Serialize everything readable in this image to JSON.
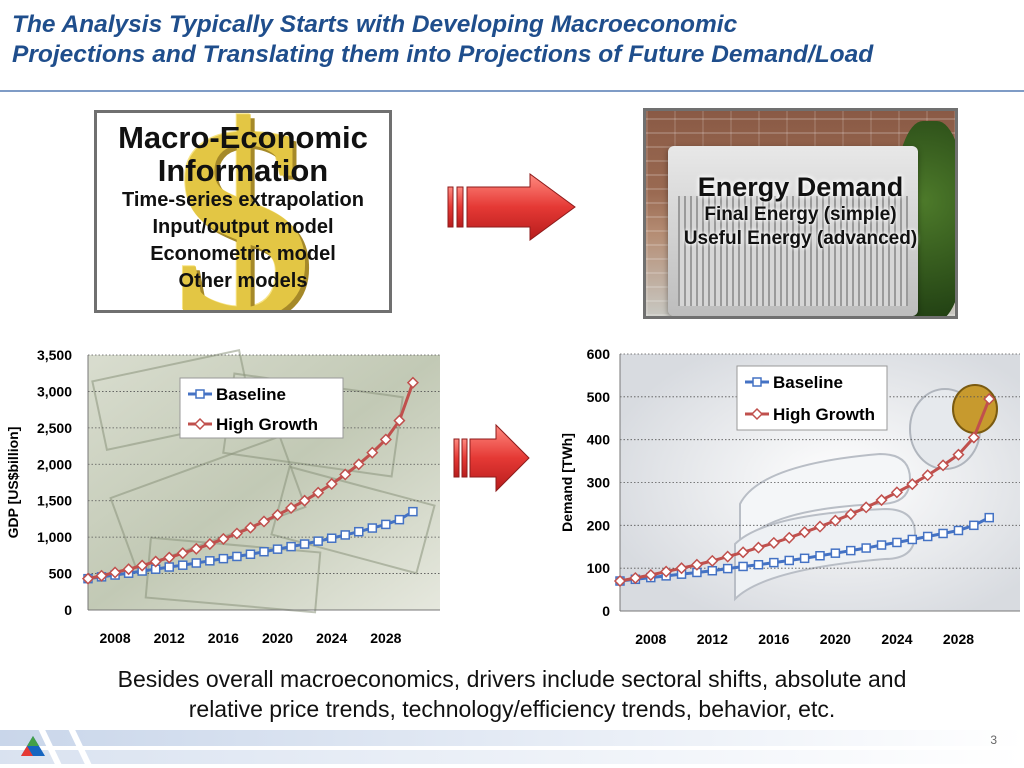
{
  "slide": {
    "title_line1": "The Analysis Typically Starts with Developing Macroeconomic",
    "title_line2": "Projections and Translating them into Projections of Future Demand/Load",
    "page_number": "3",
    "caption_line1": "Besides overall macroeconomics, drivers include sectoral shifts, absolute and",
    "caption_line2": "relative price trends, technology/efficiency trends, behavior, etc."
  },
  "macro_box": {
    "title_line1": "Macro-Economic",
    "title_line2": "Information",
    "items": [
      "Time-series extrapolation",
      "Input/output model",
      "Econometric model",
      "Other models"
    ],
    "background_icon": "dollar-sign-icon"
  },
  "energy_box": {
    "title": "Energy Demand",
    "items": [
      "Final Energy (simple)",
      "Useful Energy (advanced)"
    ],
    "background_icon": "air-conditioner-photo"
  },
  "colors": {
    "title": "#1f4e8c",
    "baseline": "#4472c4",
    "high_growth": "#c0504d",
    "arrow": "#e53935"
  },
  "chart_data": [
    {
      "type": "line",
      "ylabel": "GDP [US$billion]",
      "xlabel": "",
      "ylim": [
        0,
        3500
      ],
      "yticks": [
        0,
        500,
        1000,
        1500,
        2000,
        2500,
        3000,
        3500
      ],
      "ytick_labels": [
        "0",
        "500",
        "1,000",
        "1,500",
        "2,000",
        "2,500",
        "3,000",
        "3,500"
      ],
      "xlim": [
        2006,
        2032
      ],
      "xticks": [
        2008,
        2012,
        2016,
        2020,
        2024,
        2028
      ],
      "x": [
        2006,
        2007,
        2008,
        2009,
        2010,
        2011,
        2012,
        2013,
        2014,
        2015,
        2016,
        2017,
        2018,
        2019,
        2020,
        2021,
        2022,
        2023,
        2024,
        2025,
        2026,
        2027,
        2028,
        2029,
        2030
      ],
      "legend_position": "top-center",
      "grid": "horizontal-dotted",
      "background_icon": "dollar-bills-photo",
      "series": [
        {
          "name": "Baseline",
          "color": "#4472c4",
          "marker": "square",
          "values": [
            430,
            455,
            480,
            505,
            535,
            560,
            590,
            615,
            645,
            675,
            705,
            735,
            765,
            800,
            835,
            870,
            905,
            945,
            985,
            1030,
            1075,
            1125,
            1175,
            1240,
            1350
          ]
        },
        {
          "name": "High Growth",
          "color": "#c0504d",
          "marker": "diamond",
          "values": [
            430,
            470,
            515,
            560,
            610,
            665,
            720,
            780,
            840,
            905,
            975,
            1050,
            1130,
            1215,
            1305,
            1400,
            1500,
            1610,
            1730,
            1860,
            2000,
            2160,
            2340,
            2600,
            3120
          ]
        }
      ]
    },
    {
      "type": "line",
      "ylabel": "Demand [TWh]",
      "xlabel": "",
      "ylim": [
        0,
        600
      ],
      "yticks": [
        0,
        100,
        200,
        300,
        400,
        500,
        600
      ],
      "ytick_labels": [
        "0",
        "100",
        "200",
        "300",
        "400",
        "500",
        "600"
      ],
      "xlim": [
        2006,
        2032
      ],
      "xticks": [
        2008,
        2012,
        2016,
        2020,
        2024,
        2028
      ],
      "x": [
        2006,
        2007,
        2008,
        2009,
        2010,
        2011,
        2012,
        2013,
        2014,
        2015,
        2016,
        2017,
        2018,
        2019,
        2020,
        2021,
        2022,
        2023,
        2024,
        2025,
        2026,
        2027,
        2028,
        2029,
        2030
      ],
      "legend_position": "top-right",
      "grid": "horizontal-dotted",
      "background_icon": "light-bulb-photo",
      "series": [
        {
          "name": "Baseline",
          "color": "#4472c4",
          "marker": "square",
          "values": [
            70,
            74,
            78,
            82,
            86,
            90,
            94,
            99,
            104,
            108,
            113,
            118,
            123,
            129,
            135,
            141,
            147,
            154,
            160,
            167,
            174,
            181,
            188,
            200,
            218
          ]
        },
        {
          "name": "High Growth",
          "color": "#c0504d",
          "marker": "diamond",
          "values": [
            70,
            77,
            84,
            92,
            100,
            108,
            117,
            127,
            137,
            148,
            159,
            171,
            184,
            197,
            211,
            226,
            242,
            259,
            277,
            296,
            317,
            340,
            365,
            405,
            495
          ]
        }
      ]
    }
  ]
}
